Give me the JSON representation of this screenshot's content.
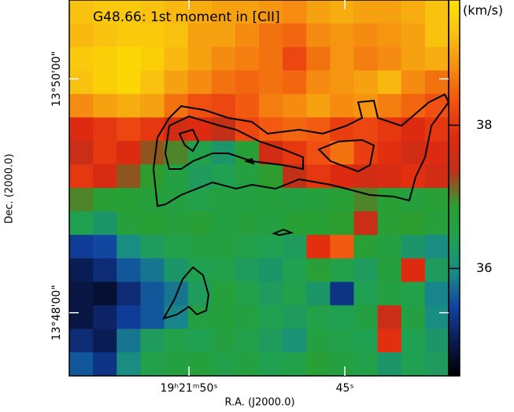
{
  "chart_data": {
    "type": "heatmap",
    "title": "G48.66: 1st moment in [CII]",
    "xlabel": "R.A. (J2000.0)",
    "ylabel": "Dec. (2000.0)",
    "colorbar_label": "(km/s)",
    "xlim": [
      69713.84,
      69701.67
    ],
    "xticks": [
      {
        "value": 69710,
        "label": "19ʰ21ᵐ50ˢ"
      },
      {
        "value": 69705,
        "label": "45ˢ"
      }
    ],
    "ylim": [
      49840.5,
      49647.6
    ],
    "yticks": [
      {
        "value": 49800,
        "label": "13°50'00\""
      },
      {
        "value": 49680,
        "label": "13°48'00\""
      }
    ],
    "clim": [
      34.5,
      39.75
    ],
    "cticks": [
      36,
      38
    ],
    "colormap": [
      "#000000",
      "#0a1a50",
      "#1040a0",
      "#188a8a",
      "#20a050",
      "#2aa030",
      "#c03018",
      "#e02a10",
      "#f05010",
      "#f58a10",
      "#f8c010",
      "#ffe000"
    ],
    "z": [
      [
        39.3,
        39.4,
        39.4,
        39.3,
        39.2,
        39.1,
        39.0,
        39.0,
        38.9,
        38.8,
        39.0,
        39.1,
        39.0,
        39.0,
        39.1,
        39.3
      ],
      [
        39.2,
        39.3,
        39.4,
        39.4,
        39.3,
        39.0,
        39.0,
        38.8,
        38.6,
        38.5,
        38.8,
        38.9,
        38.8,
        38.9,
        39.0,
        39.3
      ],
      [
        39.4,
        39.5,
        39.6,
        39.5,
        39.2,
        39.0,
        38.8,
        38.7,
        38.6,
        38.2,
        38.6,
        38.9,
        38.7,
        38.8,
        39.0,
        39.1
      ],
      [
        39.3,
        39.5,
        39.6,
        39.3,
        39.0,
        38.8,
        38.6,
        38.5,
        38.6,
        38.5,
        38.8,
        38.9,
        39.0,
        39.2,
        38.8,
        38.6
      ],
      [
        38.8,
        39.0,
        39.1,
        39.0,
        38.6,
        38.3,
        38.2,
        38.4,
        38.7,
        38.8,
        39.0,
        38.8,
        38.9,
        38.7,
        38.5,
        38.3
      ],
      [
        37.8,
        38.0,
        38.2,
        38.0,
        37.6,
        37.8,
        37.4,
        38.2,
        38.4,
        38.5,
        38.4,
        38.1,
        38.2,
        38.0,
        37.8,
        38.0
      ],
      [
        37.5,
        38.0,
        37.8,
        37.2,
        37.0,
        36.5,
        36.2,
        36.8,
        37.6,
        38.0,
        38.3,
        38.6,
        38.1,
        37.9,
        37.6,
        37.8
      ],
      [
        38.0,
        37.7,
        37.2,
        36.9,
        36.6,
        36.3,
        36.4,
        36.6,
        36.9,
        37.4,
        38.0,
        37.8,
        37.6,
        37.7,
        37.9,
        37.6
      ],
      [
        37.0,
        36.8,
        36.8,
        36.7,
        36.6,
        36.5,
        36.6,
        36.6,
        36.7,
        36.6,
        36.7,
        36.8,
        37.0,
        36.8,
        36.7,
        36.8
      ],
      [
        36.4,
        36.2,
        36.7,
        36.8,
        36.7,
        36.8,
        36.6,
        36.7,
        36.6,
        36.8,
        36.8,
        36.9,
        37.5,
        36.8,
        36.9,
        36.7
      ],
      [
        35.4,
        35.5,
        36.0,
        36.3,
        36.5,
        36.6,
        36.6,
        36.5,
        36.4,
        36.3,
        37.9,
        38.4,
        36.8,
        36.6,
        36.2,
        36.0
      ],
      [
        35.0,
        35.2,
        35.6,
        35.8,
        36.2,
        36.4,
        36.5,
        36.3,
        36.2,
        36.4,
        36.8,
        36.5,
        36.3,
        36.7,
        37.8,
        36.3
      ],
      [
        34.9,
        34.8,
        35.2,
        35.6,
        35.8,
        36.3,
        36.7,
        36.5,
        36.3,
        36.5,
        36.2,
        35.3,
        36.4,
        36.6,
        36.5,
        35.9
      ],
      [
        34.9,
        35.1,
        35.4,
        35.6,
        35.9,
        36.6,
        36.7,
        36.6,
        36.4,
        36.3,
        36.5,
        36.4,
        36.6,
        37.5,
        36.6,
        36.0
      ],
      [
        35.2,
        35.0,
        35.8,
        36.3,
        36.5,
        36.4,
        36.6,
        36.5,
        36.3,
        36.1,
        36.6,
        36.5,
        36.4,
        37.9,
        36.4,
        36.2
      ],
      [
        35.6,
        35.3,
        36.0,
        36.5,
        36.6,
        36.7,
        36.5,
        36.6,
        36.4,
        36.5,
        36.8,
        36.6,
        36.5,
        36.2,
        36.4,
        36.3
      ]
    ]
  }
}
